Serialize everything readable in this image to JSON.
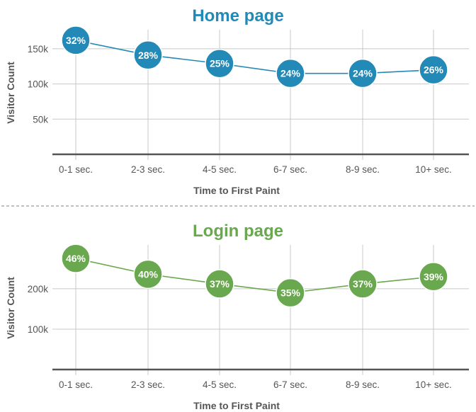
{
  "chart_data": [
    {
      "type": "line",
      "title": "Home page",
      "xlabel": "Time to First Paint",
      "ylabel": "Visitor Count",
      "color": "#2389b6",
      "ylim": [
        0,
        175000
      ],
      "yticks": [
        50000,
        100000,
        150000
      ],
      "ytick_labels": [
        "50k",
        "100k",
        "150k"
      ],
      "categories": [
        "0-1 sec.",
        "2-3 sec.",
        "4-5 sec.",
        "6-7 sec.",
        "8-9 sec.",
        "10+ sec."
      ],
      "values": [
        162000,
        141000,
        129000,
        115000,
        115000,
        120000
      ],
      "data_labels": [
        "32%",
        "28%",
        "25%",
        "24%",
        "24%",
        "26%"
      ],
      "grid": true
    },
    {
      "type": "line",
      "title": "Login page",
      "xlabel": "Time to First Paint",
      "ylabel": "Visitor Count",
      "color": "#6aa84f",
      "ylim": [
        0,
        305000
      ],
      "yticks": [
        100000,
        200000
      ],
      "ytick_labels": [
        "100k",
        "200k"
      ],
      "categories": [
        "0-1 sec.",
        "2-3 sec.",
        "4-5 sec.",
        "6-7 sec.",
        "8-9 sec.",
        "10+ sec."
      ],
      "values": [
        275000,
        236000,
        212000,
        190000,
        212000,
        230000
      ],
      "data_labels": [
        "46%",
        "40%",
        "37%",
        "35%",
        "37%",
        "39%"
      ],
      "grid": true
    }
  ]
}
